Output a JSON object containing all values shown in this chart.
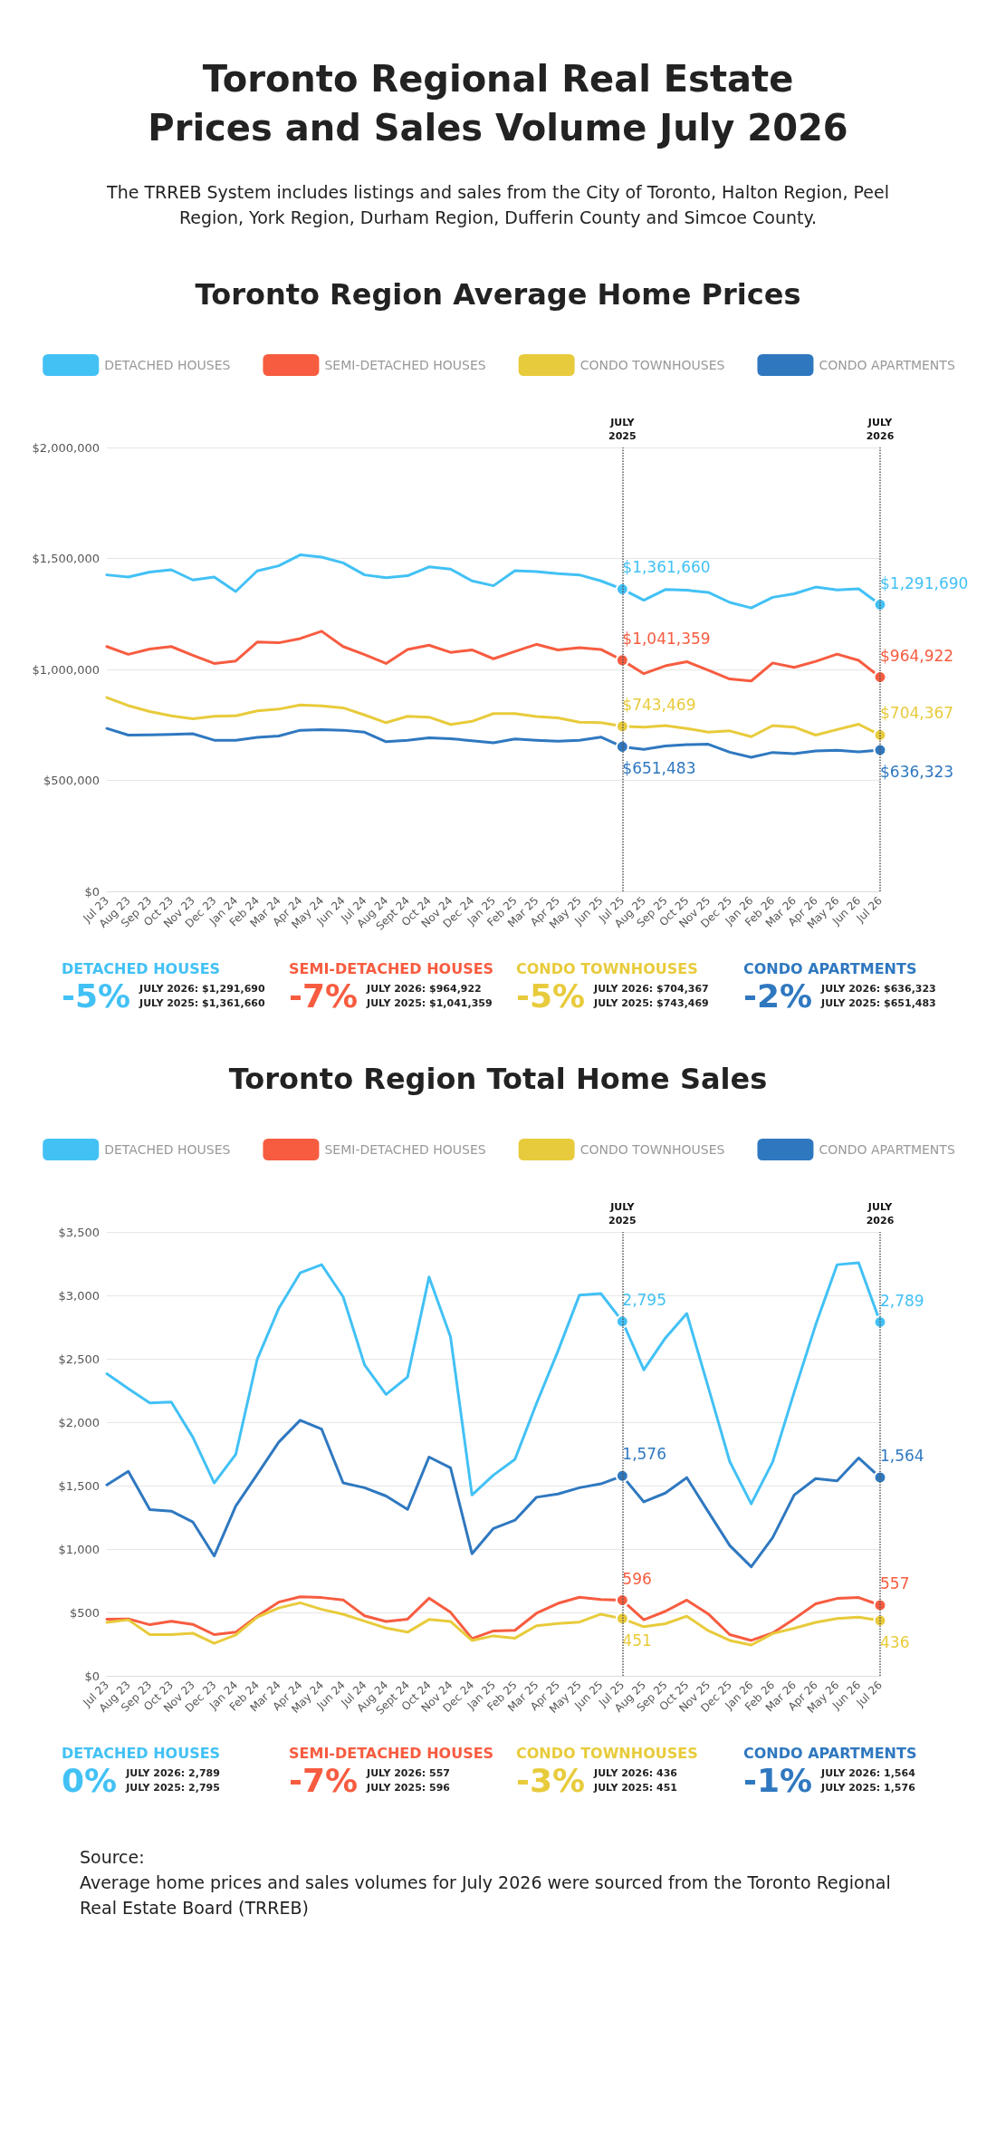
{
  "chart_data": [
    {
      "type": "other",
      "title": "Toronto Regional Real Estate Prices and Sales Volume July 2026",
      "annotations": [
        "The TRREB System includes listings and sales from the City of Toronto, Halton Region, Peel Region, York Region, Durham Region, Dufferin County and Simcoe County."
      ]
    },
    {
      "type": "line",
      "title": "Toronto Region Average Home Prices",
      "categories": [
        "Jul 23",
        "Aug 23",
        "Sep 23",
        "Oct 23",
        "Nov 23",
        "Dec 23",
        "Jan 24",
        "Feb 24",
        "Mar 24",
        "Apr 24",
        "May 24",
        "Jun 24",
        "Jul 24",
        "Aug 24",
        "Sept 24",
        "Oct 24",
        "Nov 24",
        "Dec 24",
        "Jan 25",
        "Feb 25",
        "Mar 25",
        "Apr 25",
        "May 25",
        "Jun 25",
        "Jul 25",
        "Aug 25",
        "Sep 25",
        "Oct 25",
        "Nov 25",
        "Dec 25",
        "Jan 26",
        "Feb 26",
        "Mar 26",
        "Apr 26",
        "May 26",
        "Jun 26",
        "Jul 26"
      ],
      "ylim": [
        0,
        2000000
      ],
      "yticks": [
        {
          "value": 0,
          "label": "$0"
        },
        {
          "value": 500000,
          "label": "$500,000"
        },
        {
          "value": 1000000,
          "label": "$1,000,000"
        },
        {
          "value": 1500000,
          "label": "$1,500,000"
        },
        {
          "value": 2000000,
          "label": "$2,000,000"
        }
      ],
      "grid": "y",
      "legend": "top",
      "ref_lines": [
        {
          "axis": "x",
          "value": "Jul 25",
          "label": "JULY\n2025",
          "line_style": "dotted",
          "color": "#555555"
        },
        {
          "axis": "x",
          "value": "Jul 26",
          "label": "JULY\n2026",
          "line_style": "dotted",
          "color": "#555555"
        }
      ],
      "series": [
        {
          "name": "DETACHED HOUSES",
          "color": "#42c1f5",
          "values": [
            1426000,
            1416000,
            1439000,
            1449000,
            1403000,
            1416000,
            1351000,
            1444000,
            1467000,
            1516000,
            1506000,
            1480000,
            1426000,
            1413000,
            1422000,
            1462000,
            1452000,
            1399000,
            1377000,
            1445000,
            1441000,
            1432000,
            1426000,
            1399000,
            1361660,
            1312000,
            1360000,
            1357000,
            1347000,
            1302000,
            1277000,
            1325000,
            1341000,
            1371000,
            1358000,
            1363000,
            1291690
          ],
          "value_labels": [
            null,
            null,
            null,
            null,
            null,
            null,
            null,
            null,
            null,
            null,
            null,
            null,
            null,
            null,
            null,
            null,
            null,
            null,
            null,
            null,
            null,
            null,
            null,
            null,
            "$1,361,660",
            null,
            null,
            null,
            null,
            null,
            null,
            null,
            null,
            null,
            null,
            null,
            "$1,291,690"
          ]
        },
        {
          "name": "SEMI-DETACHED HOUSES",
          "color": "#f75c40",
          "values": [
            1103000,
            1068000,
            1092000,
            1103000,
            1064000,
            1027000,
            1038000,
            1123000,
            1120000,
            1139000,
            1172000,
            1103000,
            1067000,
            1027000,
            1090000,
            1109000,
            1077000,
            1088000,
            1048000,
            1081000,
            1113000,
            1088000,
            1098000,
            1090000,
            1041359,
            981000,
            1016000,
            1035000,
            996000,
            957000,
            948000,
            1029000,
            1009000,
            1036000,
            1069000,
            1041000,
            964922
          ],
          "value_labels": [
            null,
            null,
            null,
            null,
            null,
            null,
            null,
            null,
            null,
            null,
            null,
            null,
            null,
            null,
            null,
            null,
            null,
            null,
            null,
            null,
            null,
            null,
            null,
            null,
            "$1,041,359",
            null,
            null,
            null,
            null,
            null,
            null,
            null,
            null,
            null,
            null,
            null,
            "$964,922"
          ]
        },
        {
          "name": "CONDO TOWNHOUSES",
          "color": "#e8cb3c",
          "values": [
            873000,
            837000,
            810000,
            791000,
            778000,
            789000,
            791000,
            813000,
            821000,
            840000,
            836000,
            827000,
            795000,
            760000,
            789000,
            785000,
            752000,
            766000,
            801000,
            801000,
            788000,
            782000,
            762000,
            760000,
            743469,
            740000,
            747000,
            734000,
            717000,
            723000,
            697000,
            747000,
            740000,
            704000,
            729000,
            753000,
            704367
          ],
          "value_labels": [
            null,
            null,
            null,
            null,
            null,
            null,
            null,
            null,
            null,
            null,
            null,
            null,
            null,
            null,
            null,
            null,
            null,
            null,
            null,
            null,
            null,
            null,
            null,
            null,
            "$743,469",
            null,
            null,
            null,
            null,
            null,
            null,
            null,
            null,
            null,
            null,
            null,
            "$704,367"
          ]
        },
        {
          "name": "CONDO APARTMENTS",
          "color": "#2f78c0",
          "values": [
            734000,
            704000,
            705000,
            707000,
            710000,
            681000,
            681000,
            694000,
            700000,
            726000,
            729000,
            726000,
            717000,
            674000,
            681000,
            692000,
            688000,
            679000,
            669000,
            687000,
            681000,
            677000,
            681000,
            695000,
            651483,
            640000,
            655000,
            661000,
            663000,
            627000,
            604000,
            626000,
            620000,
            633000,
            636000,
            629000,
            636323
          ],
          "value_labels": [
            null,
            null,
            null,
            null,
            null,
            null,
            null,
            null,
            null,
            null,
            null,
            null,
            null,
            null,
            null,
            null,
            null,
            null,
            null,
            null,
            null,
            null,
            null,
            null,
            "$651,483",
            null,
            null,
            null,
            null,
            null,
            null,
            null,
            null,
            null,
            null,
            null,
            "$636,323"
          ]
        }
      ],
      "annotations": [
        "-5%",
        "JULY 2026: $1,291,690",
        "JULY 2025: $1,361,660",
        "-7%",
        "JULY 2026: $964,922",
        "JULY 2025: $1,041,359",
        "-5%",
        "JULY 2026: $704,367",
        "JULY 2025: $743,469",
        "-2%",
        "JULY 2026: $636,323",
        "JULY 2025: $651,483"
      ]
    },
    {
      "type": "line",
      "title": "Toronto Region Total Home Sales",
      "categories": [
        "Jul 23",
        "Aug 23",
        "Sep 23",
        "Oct 23",
        "Nov 23",
        "Dec 23",
        "Jan 24",
        "Feb 24",
        "Mar 24",
        "Apr 24",
        "May 24",
        "Jun 24",
        "Jul 24",
        "Aug 24",
        "Sept 24",
        "Oct 24",
        "Nov 24",
        "Dec 24",
        "Jan 25",
        "Feb 25",
        "Mar 25",
        "Apr 25",
        "May 25",
        "Jun 25",
        "Jul 25",
        "Aug 25",
        "Sep 25",
        "Oct 25",
        "Nov 25",
        "Dec 25",
        "Jan 26",
        "Feb 26",
        "Mar 26",
        "Apr 26",
        "May 26",
        "Jun 26",
        "Jul 26"
      ],
      "ylim": [
        0,
        3500
      ],
      "yticks": [
        {
          "value": 0,
          "label": "$0"
        },
        {
          "value": 500,
          "label": "$500"
        },
        {
          "value": 1000,
          "label": "$1,000"
        },
        {
          "value": 1500,
          "label": "$1,500"
        },
        {
          "value": 2000,
          "label": "$2,000"
        },
        {
          "value": 2500,
          "label": "$2,500"
        },
        {
          "value": 3000,
          "label": "$3,000"
        },
        {
          "value": 3500,
          "label": "$3,500"
        }
      ],
      "grid": "y",
      "legend": "top",
      "ref_lines": [
        {
          "axis": "x",
          "value": "Jul 25",
          "label": "JULY\n2025",
          "line_style": "dotted",
          "color": "#555555"
        },
        {
          "axis": "x",
          "value": "Jul 26",
          "label": "JULY\n2026",
          "line_style": "dotted",
          "color": "#555555"
        }
      ],
      "series": [
        {
          "name": "DETACHED HOUSES",
          "color": "#42c1f5",
          "values": [
            2382,
            2265,
            2152,
            2159,
            1883,
            1521,
            1746,
            2495,
            2896,
            3177,
            3242,
            2989,
            2451,
            2219,
            2356,
            3144,
            2673,
            1426,
            1583,
            1707,
            2146,
            2560,
            3001,
            3014,
            2795,
            2413,
            2663,
            2857,
            2276,
            1689,
            1356,
            1687,
            2237,
            2767,
            3242,
            3257,
            2789
          ],
          "value_labels": [
            null,
            null,
            null,
            null,
            null,
            null,
            null,
            null,
            null,
            null,
            null,
            null,
            null,
            null,
            null,
            null,
            null,
            null,
            null,
            null,
            null,
            null,
            null,
            null,
            "2,795",
            null,
            null,
            null,
            null,
            null,
            null,
            null,
            null,
            null,
            null,
            null,
            "2,789"
          ]
        },
        {
          "name": "SEMI-DETACHED HOUSES",
          "color": "#f75c40",
          "values": [
            447,
            449,
            403,
            431,
            406,
            325,
            344,
            470,
            581,
            623,
            617,
            599,
            473,
            429,
            447,
            612,
            501,
            294,
            354,
            359,
            493,
            571,
            620,
            602,
            596,
            442,
            509,
            597,
            488,
            325,
            279,
            338,
            449,
            568,
            610,
            617,
            557
          ],
          "value_labels": [
            null,
            null,
            null,
            null,
            null,
            null,
            null,
            null,
            null,
            null,
            null,
            null,
            null,
            null,
            null,
            null,
            null,
            null,
            null,
            null,
            null,
            null,
            null,
            null,
            "596",
            null,
            null,
            null,
            null,
            null,
            null,
            null,
            null,
            null,
            null,
            null,
            "557"
          ]
        },
        {
          "name": "CONDO TOWNHOUSES",
          "color": "#e8cb3c",
          "values": [
            421,
            442,
            325,
            325,
            336,
            256,
            323,
            462,
            535,
            576,
            524,
            486,
            431,
            377,
            344,
            444,
            429,
            279,
            315,
            297,
            395,
            413,
            424,
            486,
            451,
            387,
            411,
            470,
            356,
            279,
            243,
            333,
            375,
            421,
            452,
            462,
            436
          ],
          "value_labels": [
            null,
            null,
            null,
            null,
            null,
            null,
            null,
            null,
            null,
            null,
            null,
            null,
            null,
            null,
            null,
            null,
            null,
            null,
            null,
            null,
            null,
            null,
            null,
            null,
            "451",
            null,
            null,
            null,
            null,
            null,
            null,
            null,
            null,
            null,
            null,
            null,
            "436"
          ]
        },
        {
          "name": "CONDO APARTMENTS",
          "color": "#2f78c0",
          "values": [
            1506,
            1612,
            1310,
            1299,
            1214,
            945,
            1338,
            1589,
            1842,
            2015,
            1945,
            1521,
            1483,
            1418,
            1312,
            1725,
            1640,
            963,
            1162,
            1227,
            1408,
            1434,
            1483,
            1514,
            1576,
            1372,
            1441,
            1563,
            1294,
            1028,
            860,
            1090,
            1426,
            1555,
            1537,
            1718,
            1564
          ],
          "value_labels": [
            null,
            null,
            null,
            null,
            null,
            null,
            null,
            null,
            null,
            null,
            null,
            null,
            null,
            null,
            null,
            null,
            null,
            null,
            null,
            null,
            null,
            null,
            null,
            null,
            "1,576",
            null,
            null,
            null,
            null,
            null,
            null,
            null,
            null,
            null,
            null,
            null,
            "1,564"
          ]
        }
      ],
      "annotations": [
        "0%",
        "JULY 2026: 2,789",
        "JULY 2025: 2,795",
        "-7%",
        "JULY 2026: 557",
        "JULY 2025: 596",
        "-3%",
        "JULY 2026: 436",
        "JULY 2025: 451",
        "-1%",
        "JULY 2026: 1,564",
        "JULY 2025: 1,576"
      ]
    },
    {
      "type": "other",
      "annotations": [
        "Source:",
        "Average home prices and sales volumes for July 2026 were sourced from the Toronto Regional Real Estate Board (TRREB)"
      ]
    }
  ]
}
